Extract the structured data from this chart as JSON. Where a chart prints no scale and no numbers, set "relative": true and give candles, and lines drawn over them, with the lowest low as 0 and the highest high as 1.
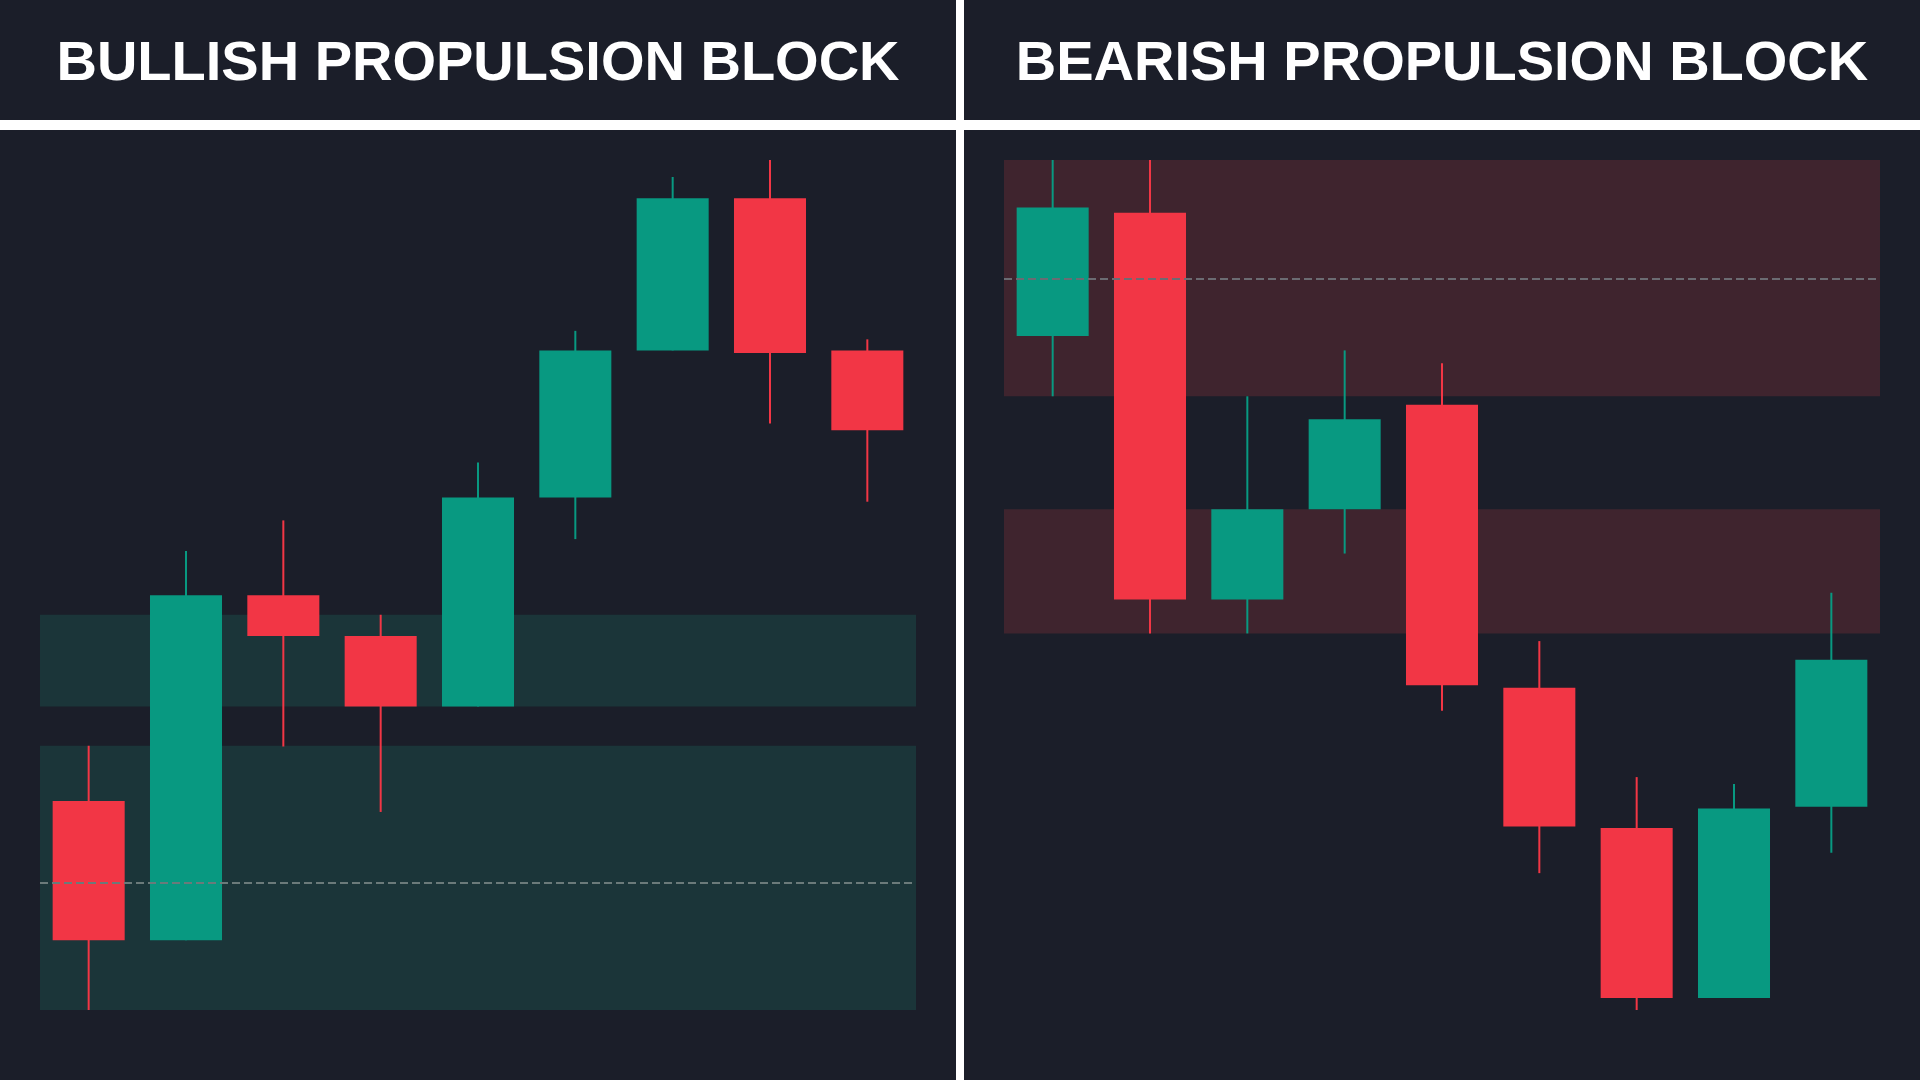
{
  "chart_data": [
    {
      "type": "candlestick",
      "title": "BULLISH PROPULSION BLOCK",
      "relative": true,
      "categories": [
        null,
        null,
        null,
        null,
        null,
        null,
        null,
        null,
        null
      ],
      "ohlc": [
        [
          0.246,
          0.311,
          0,
          0.082
        ],
        [
          0.082,
          0.54,
          0.082,
          0.488
        ],
        [
          0.488,
          0.576,
          0.31,
          0.44
        ],
        [
          0.44,
          0.465,
          0.233,
          0.357
        ],
        [
          0.357,
          0.644,
          0.357,
          0.603
        ],
        [
          0.603,
          0.799,
          0.554,
          0.776
        ],
        [
          0.776,
          0.98,
          0.776,
          0.955
        ],
        [
          0.955,
          1,
          0.69,
          0.773
        ],
        [
          0.776,
          0.789,
          0.598,
          0.682
        ]
      ],
      "colors": [
        "#f23645",
        "#089981",
        "#f23645",
        "#f23645",
        "#089981",
        "#089981",
        "#089981",
        "#f23645",
        "#f23645"
      ],
      "bands": [
        {
          "axis": "y",
          "from": 0,
          "to": 0.311,
          "color": "#1b3a3c"
        },
        {
          "axis": "y",
          "from": 0.357,
          "to": 0.465,
          "color": "#1b3a3c"
        }
      ],
      "ref_lines": [
        {
          "axis": "y",
          "value": 0.15,
          "color": "#6b7a7a",
          "line_style": "dashed"
        }
      ]
    },
    {
      "type": "candlestick",
      "title": "BEARISH PROPULSION BLOCK",
      "relative": true,
      "categories": [
        null,
        null,
        null,
        null,
        null,
        null,
        null,
        null,
        null
      ],
      "ohlc": [
        [
          0.793,
          1,
          0.722,
          0.944
        ],
        [
          0.938,
          1,
          0.443,
          0.483
        ],
        [
          0.483,
          0.722,
          0.443,
          0.589
        ],
        [
          0.589,
          0.776,
          0.537,
          0.695
        ],
        [
          0.712,
          0.761,
          0.352,
          0.382
        ],
        [
          0.379,
          0.434,
          0.161,
          0.216
        ],
        [
          0.214,
          0.274,
          0,
          0.014
        ],
        [
          0.014,
          0.266,
          0.014,
          0.237
        ],
        [
          0.239,
          0.491,
          0.185,
          0.412
        ]
      ],
      "colors": [
        "#089981",
        "#f23645",
        "#089981",
        "#089981",
        "#f23645",
        "#f23645",
        "#f23645",
        "#089981",
        "#089981"
      ],
      "bands": [
        {
          "axis": "y",
          "from": 0.722,
          "to": 1,
          "color": "#45262f"
        },
        {
          "axis": "y",
          "from": 0.443,
          "to": 0.589,
          "color": "#45262f"
        }
      ],
      "ref_lines": [
        {
          "axis": "y",
          "value": 0.862,
          "color": "#6b6b72",
          "line_style": "dashed"
        }
      ]
    }
  ]
}
